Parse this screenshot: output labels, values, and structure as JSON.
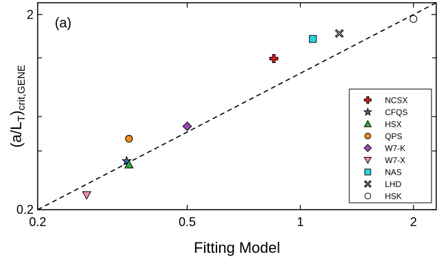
{
  "chart_data": {
    "type": "scatter",
    "panel_label": "(a)",
    "xlabel": "Fitting Model",
    "ylabel_main": "(a/L",
    "ylabel_sub1": "T",
    "ylabel_mid": ")",
    "ylabel_sub2": "crit,GENE",
    "x_scale": "log",
    "y_scale": "log",
    "xlim": [
      0.2,
      2.3
    ],
    "ylim": [
      0.2,
      2.3
    ],
    "x_ticks": [
      {
        "value": 0.2,
        "label": "0.2"
      },
      {
        "value": 0.5,
        "label": "0.5"
      },
      {
        "value": 1,
        "label": "1"
      },
      {
        "value": 2,
        "label": "2"
      }
    ],
    "y_ticks": [
      {
        "value": 0.2,
        "label": "0.2"
      },
      {
        "value": 2,
        "label": "2"
      }
    ],
    "y_minor_ticks": [
      0.4,
      0.6,
      1.2
    ],
    "reference_line": {
      "style": "dashed",
      "from": [
        0.2,
        0.2
      ],
      "to": [
        2.3,
        2.3
      ]
    },
    "legend_position": "right",
    "series": [
      {
        "name": "NCSX",
        "marker": "cross",
        "color": "#dd2222",
        "x": 0.85,
        "y": 1.19
      },
      {
        "name": "CFQS",
        "marker": "star",
        "color": "#3a6fb0",
        "x": 0.345,
        "y": 0.355
      },
      {
        "name": "HSX",
        "marker": "triangle-up",
        "color": "#33aa44",
        "x": 0.35,
        "y": 0.34
      },
      {
        "name": "QPS",
        "marker": "circle",
        "color": "#f08c1a",
        "x": 0.35,
        "y": 0.462
      },
      {
        "name": "W7-K",
        "marker": "diamond",
        "color": "#9b4bb5",
        "x": 0.5,
        "y": 0.535
      },
      {
        "name": "W7-X",
        "marker": "triangle-down",
        "color": "#f28bb8",
        "x": 0.27,
        "y": 0.238
      },
      {
        "name": "NAS",
        "marker": "square",
        "color": "#2fd4e0",
        "x": 1.08,
        "y": 1.5
      },
      {
        "name": "LHD",
        "marker": "x-square",
        "color": "#9a9a9a",
        "x": 1.27,
        "y": 1.6
      },
      {
        "name": "HSK",
        "marker": "circle-open",
        "color": "#ffffff",
        "x": 2.0,
        "y": 1.9
      }
    ]
  }
}
